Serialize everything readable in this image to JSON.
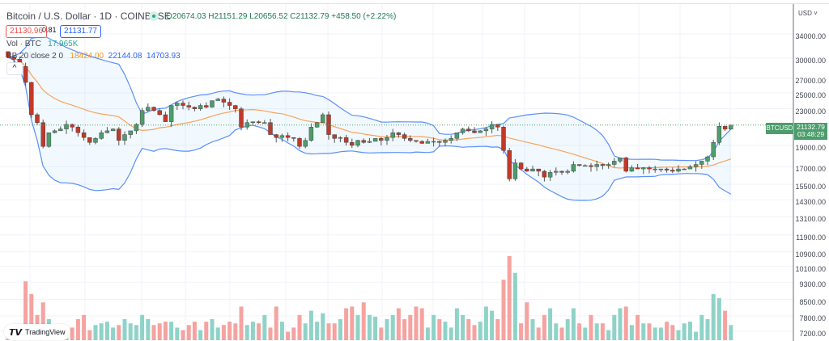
{
  "header": {
    "title": "Bitcoin / U.S. Dollar · 1D · COINBASE",
    "ohlc": "O20674.03 H21151.29 L20656.52 C21132.79 +458.50 (+2.22%)",
    "sell_price": "21130.96",
    "spread": "0.81",
    "buy_price": "21131.77"
  },
  "indicators": {
    "vol_label": "Vol · BTC",
    "vol_value": "17.965K",
    "bb_label": "BB 20 close 2 0",
    "bb_basis": "18424.00",
    "bb_upper": "22144.08",
    "bb_lower": "14703.93",
    "collapse_icon": "^"
  },
  "axis": {
    "currency": "USD ˅",
    "ticks": [
      "34000.00",
      "30000.00",
      "27000.00",
      "25000.00",
      "23000.00",
      "19000.00",
      "17000.00",
      "15500.00",
      "14300.00",
      "13100.00",
      "11900.00",
      "10900.00",
      "10100.00",
      "9300.00",
      "8500.00",
      "7800.00",
      "7200.00"
    ],
    "symbol_tag": "BTCUSD",
    "last_price": "21132.79",
    "countdown": "03:48:29"
  },
  "branding": {
    "logo_text": "TradingView",
    "logo_mark": "17"
  },
  "colors": {
    "up": "#4c9d6b",
    "down": "#c0392b",
    "vol_up": "#8fd3c8",
    "vol_down": "#f5a3a0",
    "band": "#5b8ff9",
    "basis": "#f7a35c"
  },
  "chart_data": {
    "type": "candlestick",
    "scale": "log",
    "first_open": 31000,
    "closes": [
      30100,
      29800,
      28700,
      26400,
      22300,
      21400,
      18900,
      20300,
      20500,
      20700,
      21200,
      20900,
      20300,
      19800,
      19300,
      19700,
      20300,
      20500,
      20700,
      19500,
      20100,
      20500,
      21200,
      22800,
      23200,
      22800,
      22300,
      21500,
      23400,
      23700,
      23400,
      23200,
      23000,
      23400,
      23200,
      24000,
      24200,
      23800,
      23400,
      23000,
      20900,
      21400,
      21500,
      21400,
      21400,
      20100,
      19800,
      20000,
      19800,
      19700,
      18900,
      19500,
      20900,
      21400,
      22300,
      20100,
      19700,
      19800,
      19300,
      19000,
      19500,
      19300,
      19400,
      19700,
      19500,
      19800,
      20300,
      20100,
      19700,
      19500,
      19400,
      19200,
      19400,
      19400,
      19300,
      19500,
      19700,
      20300,
      20700,
      20500,
      20300,
      20500,
      20700,
      21200,
      20900,
      18500,
      15950,
      17340,
      16800,
      16600,
      16800,
      16600,
      16100,
      16500,
      16600,
      16500,
      16600,
      17200,
      17100,
      17100,
      17000,
      17200,
      17100,
      17200,
      17500,
      17800,
      16600,
      16900,
      16800,
      16900,
      16800,
      16800,
      16800,
      16700,
      16600,
      16800,
      16800,
      17000,
      17200,
      17500,
      17900,
      19300,
      21000,
      20674,
      21132.79
    ],
    "volumes_k": [
      12,
      12,
      15,
      70,
      55,
      30,
      45,
      25,
      15,
      15,
      12,
      15,
      25,
      30,
      12,
      18,
      20,
      22,
      15,
      18,
      25,
      20,
      18,
      30,
      25,
      18,
      20,
      22,
      22,
      15,
      12,
      18,
      22,
      12,
      22,
      25,
      15,
      18,
      22,
      20,
      40,
      18,
      22,
      20,
      30,
      15,
      40,
      22,
      10,
      15,
      30,
      20,
      35,
      22,
      32,
      20,
      20,
      25,
      38,
      40,
      30,
      45,
      30,
      28,
      15,
      25,
      30,
      38,
      25,
      30,
      40,
      38,
      15,
      30,
      25,
      22,
      15,
      38,
      30,
      25,
      18,
      22,
      40,
      35,
      25,
      72,
      100,
      80,
      20,
      45,
      25,
      15,
      30,
      38,
      20,
      15,
      25,
      38,
      20,
      15,
      30,
      20,
      20,
      12,
      30,
      38,
      40,
      18,
      30,
      20,
      20,
      15,
      15,
      22,
      18,
      12,
      20,
      22,
      10,
      30,
      25,
      55,
      50,
      35,
      17.965
    ],
    "bollinger": {
      "length": 20,
      "mult": 2
    }
  }
}
